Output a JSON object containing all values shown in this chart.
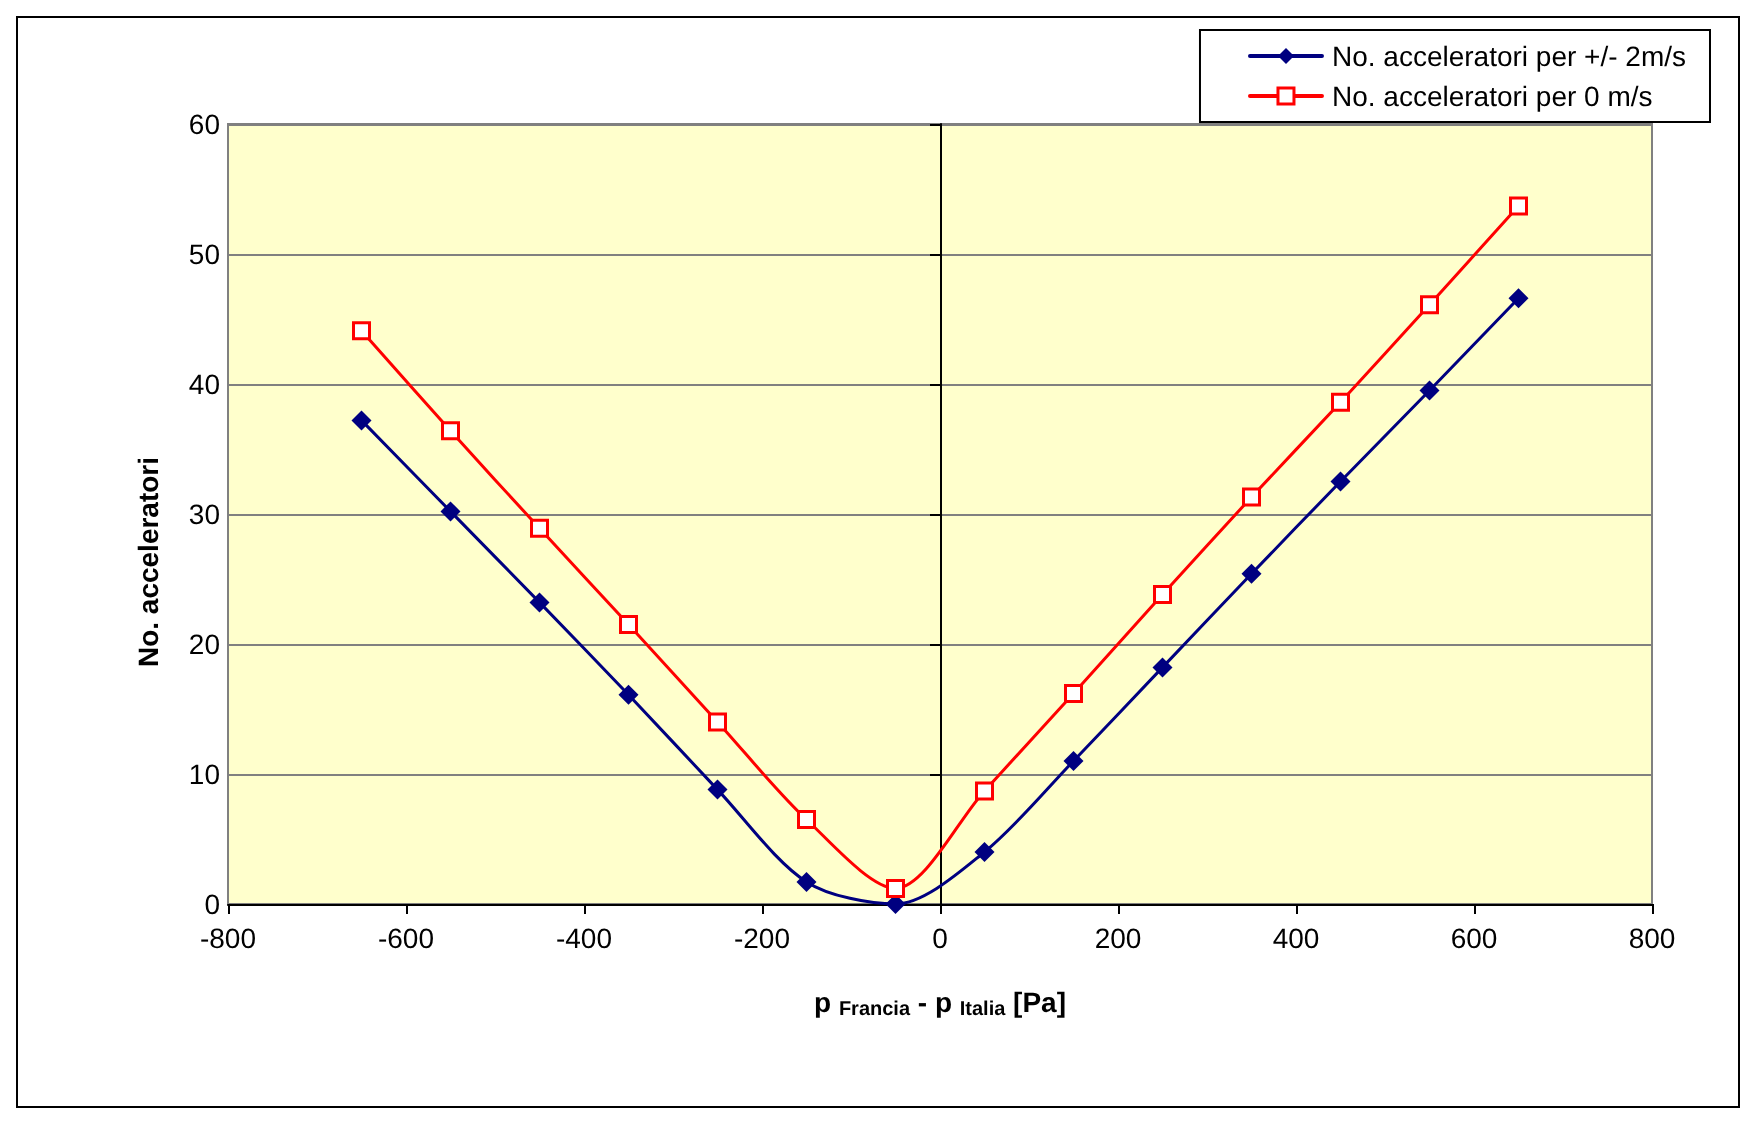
{
  "chart_data": {
    "type": "line",
    "xlabel": "p $_{Francia}$ - p $_{Italia}$ [Pa]",
    "ylabel": "No. acceleratori",
    "x": [
      -650,
      -550,
      -450,
      -350,
      -250,
      -150,
      -50,
      50,
      150,
      250,
      350,
      450,
      550,
      650
    ],
    "series": [
      {
        "name": "No. acceleratori per +/- 2m/s",
        "color": "#000080",
        "marker": "diamond",
        "values": [
          37.2,
          30.2,
          23.2,
          16.1,
          8.8,
          1.7,
          0,
          4,
          11,
          18.2,
          25.4,
          32.5,
          39.5,
          46.6
        ]
      },
      {
        "name": "No. acceleratori per 0 m/s",
        "color": "#ff0000",
        "marker": "square",
        "values": [
          44.1,
          36.4,
          28.9,
          21.5,
          14.0,
          6.5,
          1.2,
          8.7,
          16.2,
          23.8,
          31.3,
          38.6,
          46.1,
          53.7
        ]
      }
    ],
    "xlim": [
      -800,
      800
    ],
    "xticks": [
      -800,
      -600,
      -400,
      -200,
      0,
      200,
      400,
      600,
      800
    ],
    "ylim": [
      0,
      60
    ],
    "yticks": [
      0,
      10,
      20,
      30,
      40,
      50,
      60
    ],
    "grid": "y",
    "legend": "top right",
    "line_style": "solid"
  }
}
